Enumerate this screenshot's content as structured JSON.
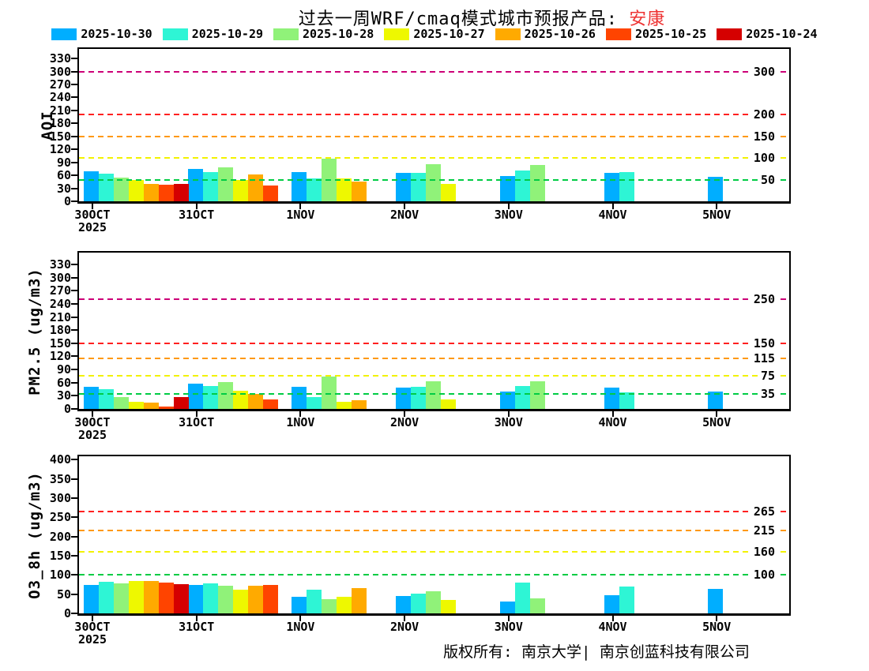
{
  "title": {
    "prefix": "过去一周WRF/cmaq模式城市预报产品: ",
    "city": "安康",
    "city_color": "#ee3333"
  },
  "legend": {
    "items": [
      {
        "label": "2025-10-30",
        "color": "#00aeff"
      },
      {
        "label": "2025-10-29",
        "color": "#2ef5d5"
      },
      {
        "label": "2025-10-28",
        "color": "#90f279"
      },
      {
        "label": "2025-10-27",
        "color": "#eef800"
      },
      {
        "label": "2025-10-26",
        "color": "#ffaa00"
      },
      {
        "label": "2025-10-25",
        "color": "#ff4400"
      },
      {
        "label": "2025-10-24",
        "color": "#d50000"
      }
    ]
  },
  "footer": {
    "text": "版权所有: 南京大学| 南京创蓝科技有限公司"
  },
  "chart_data": [
    {
      "type": "bar",
      "ylabel": "AQI",
      "ylim": [
        0,
        352
      ],
      "yticks": [
        0,
        30,
        60,
        90,
        120,
        150,
        180,
        210,
        240,
        270,
        300,
        330
      ],
      "categories": [
        "30OCT",
        "31OCT",
        "1NOV",
        "2NOV",
        "3NOV",
        "4NOV",
        "5NOV"
      ],
      "year_label": "2025",
      "grid": "off",
      "thresholds": [
        {
          "value": 50,
          "color": "#00cc44",
          "label": "50"
        },
        {
          "value": 100,
          "color": "#f2f200",
          "label": "100"
        },
        {
          "value": 150,
          "color": "#ff9912",
          "label": "150"
        },
        {
          "value": 200,
          "color": "#ff2020",
          "label": "200"
        },
        {
          "value": 300,
          "color": "#cc0077",
          "label": "300"
        }
      ],
      "series": [
        {
          "name": "2025-10-30",
          "values": [
            70,
            74,
            68,
            66,
            58,
            66,
            56
          ]
        },
        {
          "name": "2025-10-29",
          "values": [
            63,
            67,
            53,
            66,
            72,
            68,
            null
          ]
        },
        {
          "name": "2025-10-28",
          "values": [
            55,
            79,
            99,
            86,
            84,
            null,
            null
          ]
        },
        {
          "name": "2025-10-27",
          "values": [
            50,
            50,
            53,
            40,
            null,
            null,
            null
          ]
        },
        {
          "name": "2025-10-26",
          "values": [
            41,
            62,
            46,
            null,
            null,
            null,
            null
          ]
        },
        {
          "name": "2025-10-25",
          "values": [
            39,
            37,
            null,
            null,
            null,
            null,
            null
          ]
        },
        {
          "name": "2025-10-24",
          "values": [
            40,
            null,
            null,
            null,
            null,
            null,
            null
          ]
        }
      ]
    },
    {
      "type": "bar",
      "ylabel": "PM2.5 (ug/m3)",
      "ylim": [
        0,
        357
      ],
      "yticks": [
        0,
        30,
        60,
        90,
        120,
        150,
        180,
        210,
        240,
        270,
        300,
        330
      ],
      "categories": [
        "30OCT",
        "31OCT",
        "1NOV",
        "2NOV",
        "3NOV",
        "4NOV",
        "5NOV"
      ],
      "year_label": "2025",
      "grid": "off",
      "thresholds": [
        {
          "value": 35,
          "color": "#00cc44",
          "label": "35"
        },
        {
          "value": 75,
          "color": "#f2f200",
          "label": "75"
        },
        {
          "value": 115,
          "color": "#ff9912",
          "label": "115"
        },
        {
          "value": 150,
          "color": "#ff2020",
          "label": "150"
        },
        {
          "value": 250,
          "color": "#cc0077",
          "label": "250"
        }
      ],
      "series": [
        {
          "name": "2025-10-30",
          "values": [
            50,
            58,
            51,
            48,
            40,
            49,
            39
          ]
        },
        {
          "name": "2025-10-29",
          "values": [
            46,
            52,
            27,
            50,
            53,
            38,
            null
          ]
        },
        {
          "name": "2025-10-28",
          "values": [
            27,
            62,
            74,
            64,
            64,
            null,
            null
          ]
        },
        {
          "name": "2025-10-27",
          "values": [
            16,
            42,
            16,
            22,
            null,
            null,
            null
          ]
        },
        {
          "name": "2025-10-26",
          "values": [
            15,
            35,
            19,
            null,
            null,
            null,
            null
          ]
        },
        {
          "name": "2025-10-25",
          "values": [
            5,
            22,
            null,
            null,
            null,
            null,
            null
          ]
        },
        {
          "name": "2025-10-24",
          "values": [
            27,
            null,
            null,
            null,
            null,
            null,
            null
          ]
        }
      ]
    },
    {
      "type": "bar",
      "ylabel": "O3_8h (ug/m3)",
      "ylim": [
        0,
        409
      ],
      "yticks": [
        0,
        50,
        100,
        150,
        200,
        250,
        300,
        350,
        400
      ],
      "categories": [
        "30OCT",
        "31OCT",
        "1NOV",
        "2NOV",
        "3NOV",
        "4NOV",
        "5NOV"
      ],
      "year_label": "2025",
      "grid": "off",
      "thresholds": [
        {
          "value": 100,
          "color": "#00cc44",
          "label": "100"
        },
        {
          "value": 160,
          "color": "#f2f200",
          "label": "160"
        },
        {
          "value": 215,
          "color": "#ff9912",
          "label": "215"
        },
        {
          "value": 265,
          "color": "#ff2020",
          "label": "265"
        }
      ],
      "series": [
        {
          "name": "2025-10-30",
          "values": [
            74,
            73,
            43,
            45,
            30,
            48,
            64
          ]
        },
        {
          "name": "2025-10-29",
          "values": [
            82,
            79,
            61,
            52,
            81,
            69,
            null
          ]
        },
        {
          "name": "2025-10-28",
          "values": [
            78,
            71,
            37,
            58,
            39,
            null,
            null
          ]
        },
        {
          "name": "2025-10-27",
          "values": [
            84,
            62,
            43,
            34,
            null,
            null,
            null
          ]
        },
        {
          "name": "2025-10-26",
          "values": [
            84,
            72,
            66,
            null,
            null,
            null,
            null
          ]
        },
        {
          "name": "2025-10-25",
          "values": [
            80,
            75,
            null,
            null,
            null,
            null,
            null
          ]
        },
        {
          "name": "2025-10-24",
          "values": [
            76,
            null,
            null,
            null,
            null,
            null,
            null
          ]
        }
      ]
    }
  ]
}
